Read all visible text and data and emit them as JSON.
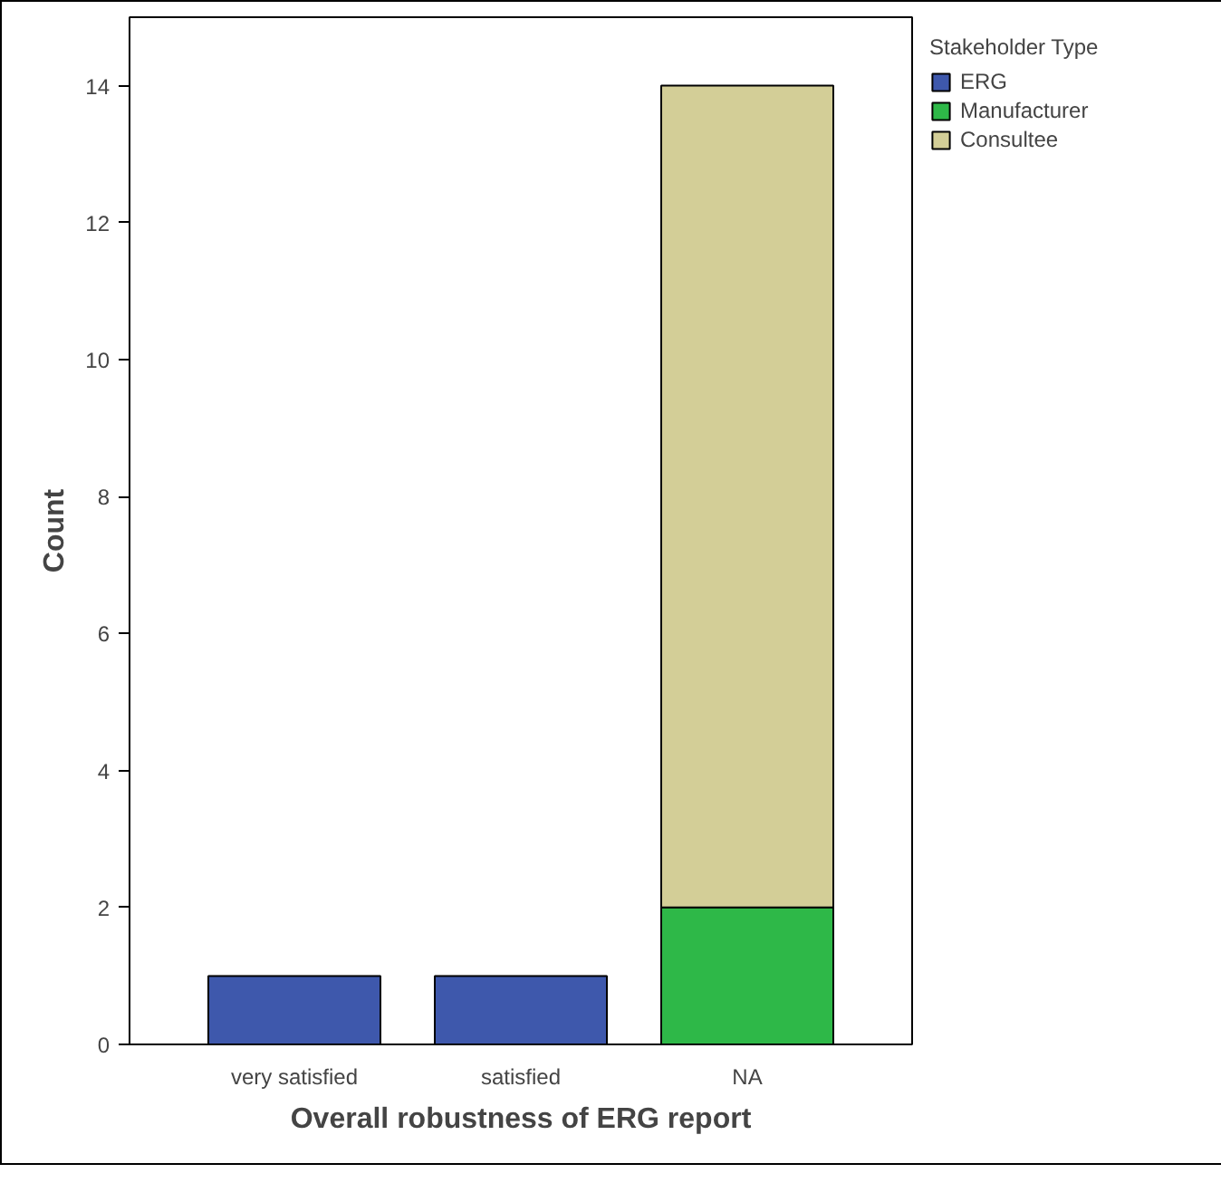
{
  "chart_data": {
    "type": "bar",
    "stacked": true,
    "xlabel": "Overall robustness of ERG report",
    "ylabel": "Count",
    "legend_title": "Stakeholder Type",
    "categories": [
      "very satisfied",
      "satisfied",
      "NA"
    ],
    "series": [
      {
        "name": "ERG",
        "color": "#3e58ac",
        "values": [
          1,
          1,
          0
        ]
      },
      {
        "name": "Manufacturer",
        "color": "#2eb848",
        "values": [
          0,
          0,
          2
        ]
      },
      {
        "name": "Consultee",
        "color": "#d3ce97",
        "values": [
          0,
          0,
          12
        ]
      }
    ],
    "ylim": [
      0,
      15
    ],
    "yticks": [
      0,
      2,
      4,
      6,
      8,
      10,
      12,
      14
    ],
    "grid": false,
    "legend": "top right"
  }
}
